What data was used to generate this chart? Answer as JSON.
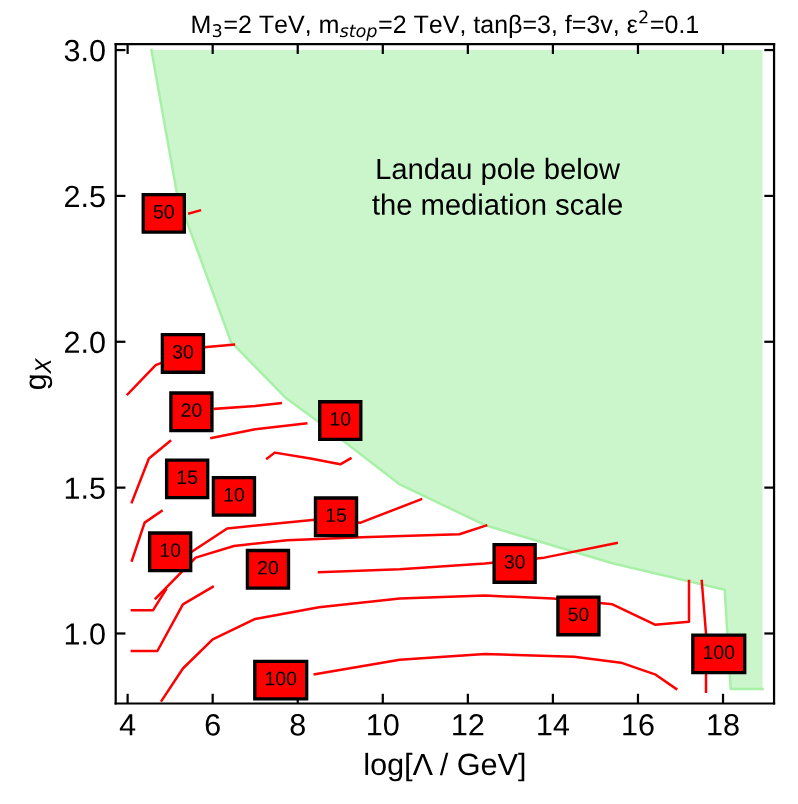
{
  "chart_data": {
    "type": "line",
    "title": "M$_{3}$=2 TeV, m$_{stop}$=2 TeV, tanβ=3, f=3v, ε$^{2}$=0.1",
    "xlabel": "log[Λ / GeV]",
    "ylabel": "g$_{X}$",
    "xlim": [
      3.72,
      19.2
    ],
    "ylim": [
      0.76,
      3.02
    ],
    "xticks": [
      4,
      6,
      8,
      10,
      12,
      14,
      16,
      18
    ],
    "yticks": [
      {
        "value": 1.0,
        "label": "1.0"
      },
      {
        "value": 1.5,
        "label": "1.5"
      },
      {
        "value": 2.0,
        "label": "2.0"
      },
      {
        "value": 2.5,
        "label": "2.5"
      },
      {
        "value": 3.0,
        "label": "3.0"
      }
    ],
    "grid": false,
    "legend": false,
    "series": [
      {
        "type": "line",
        "color": "#a8f0a8",
        "x": [
          4.56,
          5.17,
          6.43,
          7.7,
          8.54,
          10.41,
          12.43,
          15.42,
          18.04,
          18.18,
          18.93
        ],
        "values": [
          3.0,
          2.5,
          2.0,
          1.81,
          1.72,
          1.51,
          1.37,
          1.24,
          1.15,
          0.81,
          0.81
        ],
        "lower": [
          3.0,
          2.5,
          2.0,
          1.81,
          1.72,
          1.51,
          1.37,
          1.24,
          1.15,
          0.81,
          0.81
        ],
        "upper": [
          3.0,
          3.0,
          3.0,
          3.0,
          3.0,
          3.0,
          3.0,
          3.0,
          3.0,
          3.0,
          3.0
        ]
      },
      {
        "color": "#ff0000",
        "x": [
          8.4,
          10.4,
          12.4,
          14.5,
          15.6,
          16.4,
          16.9
        ],
        "values": [
          0.86,
          0.91,
          0.93,
          0.92,
          0.9,
          0.86,
          0.81
        ]
      },
      {
        "color": "#ff0000",
        "x": [
          17.6,
          17.6,
          17.5
        ],
        "values": [
          0.8,
          1.0,
          1.18
        ]
      },
      {
        "color": "#ff0000",
        "x": [
          4.8,
          5.3,
          6.0,
          7.0,
          8.5,
          10.4,
          12.4,
          14.0,
          15.4,
          16.4,
          17.2,
          17.2
        ],
        "values": [
          0.77,
          0.88,
          0.98,
          1.05,
          1.09,
          1.12,
          1.13,
          1.12,
          1.1,
          1.03,
          1.04,
          1.18
        ]
      },
      {
        "color": "#ff0000",
        "x": [
          4.1,
          4.7,
          5.3,
          6.0,
          7.0,
          8.5,
          10.4,
          12.4,
          13.8,
          15.5
        ],
        "values": [
          0.94,
          0.94,
          1.1,
          1.16,
          null,
          1.21,
          1.22,
          1.24,
          1.26,
          1.31
        ]
      },
      {
        "color": "#ff0000",
        "x": [
          4.66,
          5.6,
          6.5,
          7.75,
          9.5,
          11.8,
          12.43
        ],
        "values": [
          1.12,
          1.26,
          1.3,
          1.32,
          1.33,
          1.34,
          1.37
        ]
      },
      {
        "color": "#ff0000",
        "x": [
          4.1,
          4.6,
          4.9
        ],
        "values": [
          1.08,
          1.08,
          1.15
        ]
      },
      {
        "color": "#ff0000",
        "x": [
          5.4,
          6.34,
          8.4,
          9.48,
          10.9
        ],
        "values": [
          1.27,
          1.36,
          1.39,
          1.38,
          1.46
        ]
      },
      {
        "color": "#ff0000",
        "x": [
          4.1,
          4.4,
          4.8
        ],
        "values": [
          1.25,
          1.38,
          1.42
        ]
      },
      {
        "color": "#ff0000",
        "x": [
          4.1,
          4.5,
          5.0
        ],
        "values": [
          1.45,
          1.6,
          1.66
        ]
      },
      {
        "color": "#ff0000",
        "x": [
          5.97,
          7.0,
          8.2
        ],
        "values": [
          1.67,
          1.7,
          1.72
        ]
      },
      {
        "color": "#ff0000",
        "x": [
          6.05,
          7.0,
          7.6
        ],
        "values": [
          1.77,
          1.78,
          1.79
        ]
      },
      {
        "color": "#ff0000",
        "x": [
          7.28,
          7.46,
          8.3,
          9.0,
          9.24
        ],
        "values": [
          1.6,
          1.62,
          1.6,
          1.58,
          1.6
        ]
      },
      {
        "color": "#ff0000",
        "x": [
          4.0,
          4.66,
          5.73,
          6.5
        ],
        "values": [
          1.82,
          1.92,
          1.98,
          1.99
        ]
      },
      {
        "color": "#ff0000",
        "x": [
          5.45,
          5.7
        ],
        "values": [
          2.44,
          2.45
        ]
      }
    ],
    "annotations": [
      "Landau pole below\nthe mediation scale",
      {
        "text": "50",
        "x": 4.85,
        "y": 2.44
      },
      {
        "text": "30",
        "x": 5.3,
        "y": 1.96
      },
      {
        "text": "20",
        "x": 5.5,
        "y": 1.76
      },
      {
        "text": "15",
        "x": 5.4,
        "y": 1.53
      },
      {
        "text": "10",
        "x": 5.0,
        "y": 1.28
      },
      {
        "text": "10",
        "x": 6.5,
        "y": 1.47
      },
      {
        "text": "10",
        "x": 9.0,
        "y": 1.73
      },
      {
        "text": "15",
        "x": 8.9,
        "y": 1.4
      },
      {
        "text": "20",
        "x": 7.3,
        "y": 1.22
      },
      {
        "text": "30",
        "x": 13.1,
        "y": 1.24
      },
      {
        "text": "50",
        "x": 14.6,
        "y": 1.06
      },
      {
        "text": "100",
        "x": 7.6,
        "y": 0.84
      },
      {
        "text": "100",
        "x": 17.9,
        "y": 0.93
      }
    ]
  }
}
